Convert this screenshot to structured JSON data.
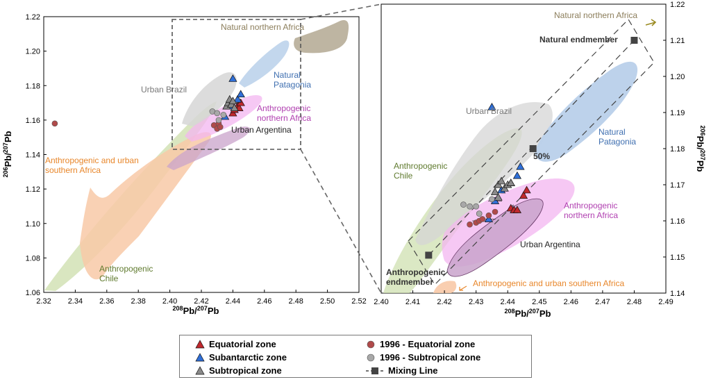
{
  "chart_data": [
    {
      "type": "scatter",
      "panel": "overview",
      "xlabel": "208Pb/207Pb",
      "ylabel": "206Pb/207Pb",
      "xlim": [
        2.32,
        2.52
      ],
      "ylim": [
        1.06,
        1.22
      ],
      "xticks": [
        2.32,
        2.34,
        2.36,
        2.38,
        2.4,
        2.42,
        2.44,
        2.46,
        2.48,
        2.5,
        2.52
      ],
      "yticks": [
        1.06,
        1.08,
        1.1,
        1.12,
        1.14,
        1.16,
        1.18,
        1.2,
        1.22
      ],
      "xtick_labels": [
        "2.32",
        "2.34",
        "2.36",
        "2.38",
        "2.40",
        "2.42",
        "2.44",
        "2.46",
        "2.48",
        "2.50",
        "2.52"
      ],
      "ytick_labels": [
        "1.06",
        "1.08",
        "1.10",
        "1.12",
        "1.14",
        "1.16",
        "1.18",
        "1.20",
        "1.22"
      ],
      "regions": [
        {
          "label": "Natural northern Africa",
          "color": "#8b7d5a"
        },
        {
          "label": "Natural\nPatagonia",
          "color": "#3f6fb0"
        },
        {
          "label": "Urban Brazil",
          "color": "#777777"
        },
        {
          "label": "Anthropogenic\nnorthern Africa",
          "color": "#b03fb0"
        },
        {
          "label": "Urban Argentina",
          "color": "#222222"
        },
        {
          "label": "Anthropogenic and urban\nsouthern Africa",
          "color": "#e8862a"
        },
        {
          "label": "Anthropogenic\nChile",
          "color": "#5f7a2e"
        }
      ],
      "series": [
        {
          "name": "Equatorial zone",
          "values": [
            [
              2.44,
              1.164
            ],
            [
              2.441,
              1.166
            ],
            [
              2.443,
              1.168
            ],
            [
              2.444,
              1.167
            ],
            [
              2.445,
              1.17
            ]
          ]
        },
        {
          "name": "Subantarctic zone",
          "values": [
            [
              2.435,
              1.162
            ],
            [
              2.438,
              1.168
            ],
            [
              2.44,
              1.184
            ],
            [
              2.443,
              1.172
            ],
            [
              2.445,
              1.175
            ]
          ]
        },
        {
          "name": "Subtropical zone",
          "values": [
            [
              2.436,
              1.168
            ],
            [
              2.437,
              1.17
            ],
            [
              2.438,
              1.172
            ],
            [
              2.439,
              1.169
            ],
            [
              2.44,
              1.171
            ],
            [
              2.441,
              1.167
            ]
          ]
        },
        {
          "name": "1996 - Equatorial zone",
          "values": [
            [
              2.327,
              1.158
            ],
            [
              2.428,
              1.157
            ],
            [
              2.43,
              1.155
            ],
            [
              2.431,
              1.158
            ],
            [
              2.432,
              1.156
            ]
          ]
        },
        {
          "name": "1996 - Subtropical zone",
          "values": [
            [
              2.427,
              1.165
            ],
            [
              2.43,
              1.164
            ],
            [
              2.431,
              1.16
            ],
            [
              2.434,
              1.163
            ]
          ]
        }
      ]
    },
    {
      "type": "scatter",
      "panel": "zoom",
      "xlabel": "208Pb/207Pb",
      "ylabel": "206Pb/207Pb",
      "xlim": [
        2.4,
        2.49
      ],
      "ylim": [
        1.14,
        1.22
      ],
      "xticks": [
        2.4,
        2.41,
        2.42,
        2.43,
        2.44,
        2.45,
        2.46,
        2.47,
        2.48,
        2.49
      ],
      "yticks": [
        1.14,
        1.15,
        1.16,
        1.17,
        1.18,
        1.19,
        1.2,
        1.21,
        1.22
      ],
      "xtick_labels": [
        "2.40",
        "2.41",
        "2.42",
        "2.43",
        "2.44",
        "2.45",
        "2.46",
        "2.47",
        "2.48",
        "2.49"
      ],
      "ytick_labels": [
        "1.14",
        "1.15",
        "1.16",
        "1.17",
        "1.18",
        "1.19",
        "1.20",
        "1.21",
        "1.22"
      ],
      "regions": [
        {
          "label": "Natural northern Africa",
          "color": "#8b7d5a"
        },
        {
          "label": "Urban Brazil",
          "color": "#777777"
        },
        {
          "label": "Natural\nPatagonia",
          "color": "#3f6fb0"
        },
        {
          "label": "Anthropogenic\nChile",
          "color": "#5f7a2e"
        },
        {
          "label": "Anthropogenic\nnorthern Africa",
          "color": "#b03fb0"
        },
        {
          "label": "Urban Argentina",
          "color": "#222222"
        },
        {
          "label": "Anthropogenic and urban southern Africa",
          "color": "#e8862a"
        }
      ],
      "annotations": {
        "natural_endmember": "Natural endmember",
        "anthropogenic_endmember": "Anthropogenic\nendmember",
        "fifty_percent": "50%"
      },
      "mixing_line": [
        [
          2.415,
          1.1505
        ],
        [
          2.448,
          1.18
        ],
        [
          2.48,
          1.21
        ]
      ],
      "series": [
        {
          "name": "Equatorial zone",
          "values": [
            [
              2.441,
              1.1635
            ],
            [
              2.442,
              1.163
            ],
            [
              2.443,
              1.163
            ],
            [
              2.445,
              1.167
            ],
            [
              2.446,
              1.1685
            ]
          ]
        },
        {
          "name": "Subantarctic zone",
          "values": [
            [
              2.434,
              1.1605
            ],
            [
              2.436,
              1.1655
            ],
            [
              2.438,
              1.1685
            ],
            [
              2.441,
              1.1705
            ],
            [
              2.443,
              1.1725
            ],
            [
              2.444,
              1.175
            ],
            [
              2.435,
              1.1915
            ]
          ]
        },
        {
          "name": "Subtropical zone",
          "values": [
            [
              2.436,
              1.168
            ],
            [
              2.437,
              1.17
            ],
            [
              2.438,
              1.171
            ],
            [
              2.439,
              1.169
            ],
            [
              2.44,
              1.17
            ],
            [
              2.441,
              1.1705
            ],
            [
              2.437,
              1.1665
            ]
          ]
        },
        {
          "name": "1996 - Equatorial zone",
          "values": [
            [
              2.428,
              1.159
            ],
            [
              2.43,
              1.1595
            ],
            [
              2.431,
              1.16
            ],
            [
              2.432,
              1.1605
            ],
            [
              2.434,
              1.1615
            ],
            [
              2.436,
              1.1625
            ]
          ]
        },
        {
          "name": "1996 - Subtropical zone",
          "values": [
            [
              2.426,
              1.1645
            ],
            [
              2.428,
              1.164
            ],
            [
              2.43,
              1.164
            ],
            [
              2.431,
              1.162
            ],
            [
              2.435,
              1.166
            ]
          ]
        }
      ]
    }
  ],
  "legend": {
    "items": [
      {
        "label": "Equatorial zone",
        "marker": "triangle",
        "color": "#c0282d"
      },
      {
        "label": "1996 - Equatorial zone",
        "marker": "circle",
        "color": "#b04a4a"
      },
      {
        "label": "Subantarctic zone",
        "marker": "triangle",
        "color": "#2f6fd8"
      },
      {
        "label": "1996 - Subtropical zone",
        "marker": "circle",
        "color": "#a8a8a8"
      },
      {
        "label": "Subtropical zone",
        "marker": "triangle",
        "color": "#8a8a8a"
      },
      {
        "label": "Mixing Line",
        "marker": "mixing",
        "color": "#444444"
      }
    ]
  },
  "colors": {
    "equatorial": "#c0282d",
    "subantarctic": "#2f6fd8",
    "subtropical": "#8a8a8a",
    "eq1996": "#b04a4a",
    "st1996": "#a8a8a8"
  }
}
